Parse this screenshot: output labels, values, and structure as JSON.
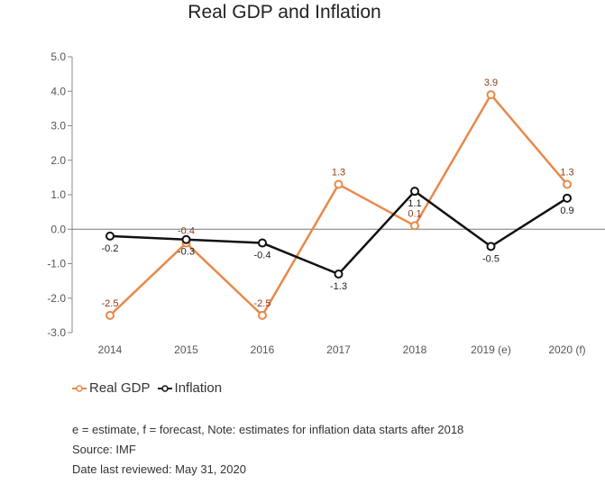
{
  "colors": {
    "gdp": "#e8894a",
    "gdp_label": "#8b3a1e",
    "inflation": "#111111",
    "axis": "#666666"
  },
  "notes": {
    "definition": "e = estimate, f = forecast, Note: estimates for inflation data starts after 2018",
    "source": "Source: IMF",
    "reviewed": "Date last reviewed: May 31, 2020"
  },
  "chart_data": {
    "type": "line",
    "title": "Real GDP and Inflation",
    "categories": [
      "2014",
      "2015",
      "2016",
      "2017",
      "2018",
      "2019 (e)",
      "2020 (f)"
    ],
    "ylim": [
      -3.0,
      5.0
    ],
    "yticks": [
      "5.0",
      "4.0",
      "3.0",
      "2.0",
      "1.0",
      "0.0",
      "-1.0",
      "-2.0",
      "-3.0"
    ],
    "grid": false,
    "legend_position": "bottom-left",
    "series": [
      {
        "name": "Real GDP",
        "color": "#e8894a",
        "values": [
          -2.5,
          -0.4,
          -2.5,
          1.3,
          0.1,
          3.9,
          1.3
        ],
        "labels": [
          "-2.5",
          "-0.4",
          "-2.5",
          "1.3",
          "0.1",
          "3.9",
          "1.3"
        ]
      },
      {
        "name": "Inflation",
        "color": "#111111",
        "values": [
          -0.2,
          -0.3,
          -0.4,
          -1.3,
          1.1,
          -0.5,
          0.9
        ],
        "labels": [
          "-0.2",
          "-0.3",
          "-0.4",
          "-1.3",
          "1.1",
          "-0.5",
          "0.9"
        ]
      }
    ]
  }
}
